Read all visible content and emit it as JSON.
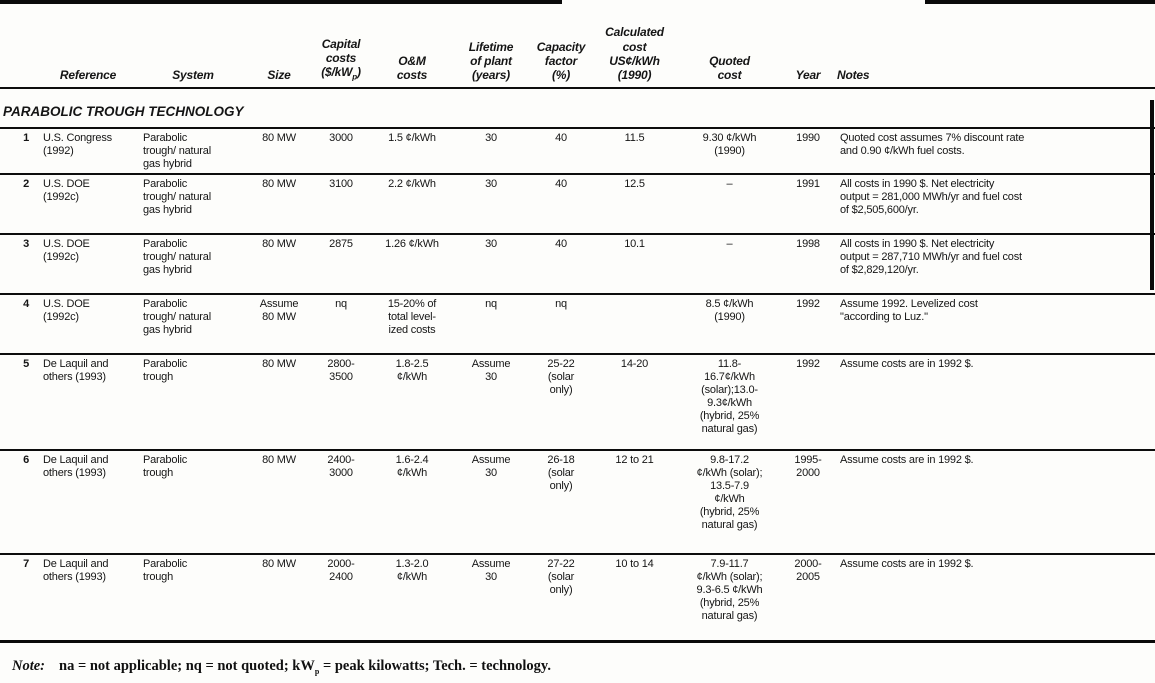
{
  "table": {
    "section_header": "PARABOLIC TROUGH TECHNOLOGY",
    "columns": [
      "",
      "Reference",
      "System",
      "Size",
      "Capital\ncosts\n($/kW_p)",
      "O&M\ncosts",
      "Lifetime\nof plant\n(years)",
      "Capacity\nfactor\n(%)",
      "Calculated\ncost\nUS¢/kWh\n(1990)",
      "Quoted\ncost",
      "Year",
      "Notes"
    ],
    "column_keys": [
      "row-number",
      "reference",
      "system",
      "size",
      "capital-costs",
      "om-costs",
      "lifetime",
      "capacity-factor",
      "calculated-cost",
      "quoted-cost",
      "year",
      "notes"
    ],
    "rows": [
      [
        "1",
        "U.S. Congress\n(1992)",
        "Parabolic\ntrough/ natural\ngas hybrid",
        "80 MW",
        "3000",
        "1.5 ¢/kWh",
        "30",
        "40",
        "11.5",
        "9.30 ¢/kWh\n(1990)",
        "1990",
        "Quoted cost assumes 7% discount rate\nand 0.90 ¢/kWh fuel costs."
      ],
      [
        "2",
        "U.S. DOE\n(1992c)",
        "Parabolic\ntrough/ natural\ngas hybrid",
        "80 MW",
        "3100",
        "2.2 ¢/kWh",
        "30",
        "40",
        "12.5",
        "–",
        "1991",
        "All costs in 1990 $. Net electricity\noutput = 281,000 MWh/yr and fuel cost\nof $2,505,600/yr."
      ],
      [
        "3",
        "U.S. DOE\n(1992c)",
        "Parabolic\ntrough/ natural\ngas hybrid",
        "80 MW",
        "2875",
        "1.26 ¢/kWh",
        "30",
        "40",
        "10.1",
        "–",
        "1998",
        "All costs in 1990 $. Net electricity\noutput = 287,710 MWh/yr and fuel cost\nof $2,829,120/yr."
      ],
      [
        "4",
        "U.S. DOE\n(1992c)",
        "Parabolic\ntrough/ natural\ngas hybrid",
        "Assume\n80 MW",
        "nq",
        "15-20% of\ntotal level-\nized costs",
        "nq",
        "nq",
        "",
        "8.5 ¢/kWh\n(1990)",
        "1992",
        "Assume 1992. Levelized cost\n\"according to Luz.\""
      ],
      [
        "5",
        "De Laquil and\nothers (1993)",
        "Parabolic\ntrough",
        "80 MW",
        "2800-\n3500",
        "1.8-2.5\n¢/kWh",
        "Assume\n30",
        "25-22\n(solar\nonly)",
        "14-20",
        "11.8-\n16.7¢/kWh\n(solar);13.0-\n9.3¢/kWh\n(hybrid, 25%\nnatural gas)",
        "1992",
        "Assume costs are in 1992 $."
      ],
      [
        "6",
        "De Laquil and\nothers (1993)",
        "Parabolic\ntrough",
        "80 MW",
        "2400-\n3000",
        "1.6-2.4\n¢/kWh",
        "Assume\n30",
        "26-18\n(solar\nonly)",
        "12 to 21",
        "9.8-17.2\n¢/kWh (solar);\n13.5-7.9\n¢/kWh\n(hybrid, 25%\nnatural gas)",
        "1995-\n2000",
        "Assume costs are in 1992 $."
      ],
      [
        "7",
        "De Laquil and\nothers (1993)",
        "Parabolic\ntrough",
        "80 MW",
        "2000-\n2400",
        "1.3-2.0\n¢/kWh",
        "Assume\n30",
        "27-22\n(solar\nonly)",
        "10 to 14",
        "7.9-11.7\n¢/kWh (solar);\n9.3-6.5 ¢/kWh\n(hybrid, 25%\nnatural gas)",
        "2000-\n2005",
        "Assume costs are in 1992 $."
      ]
    ]
  },
  "footnote": {
    "label": "Note:",
    "text": "na = not applicable; nq = not quoted; kW_p = peak kilowatts; Tech. = technology."
  }
}
